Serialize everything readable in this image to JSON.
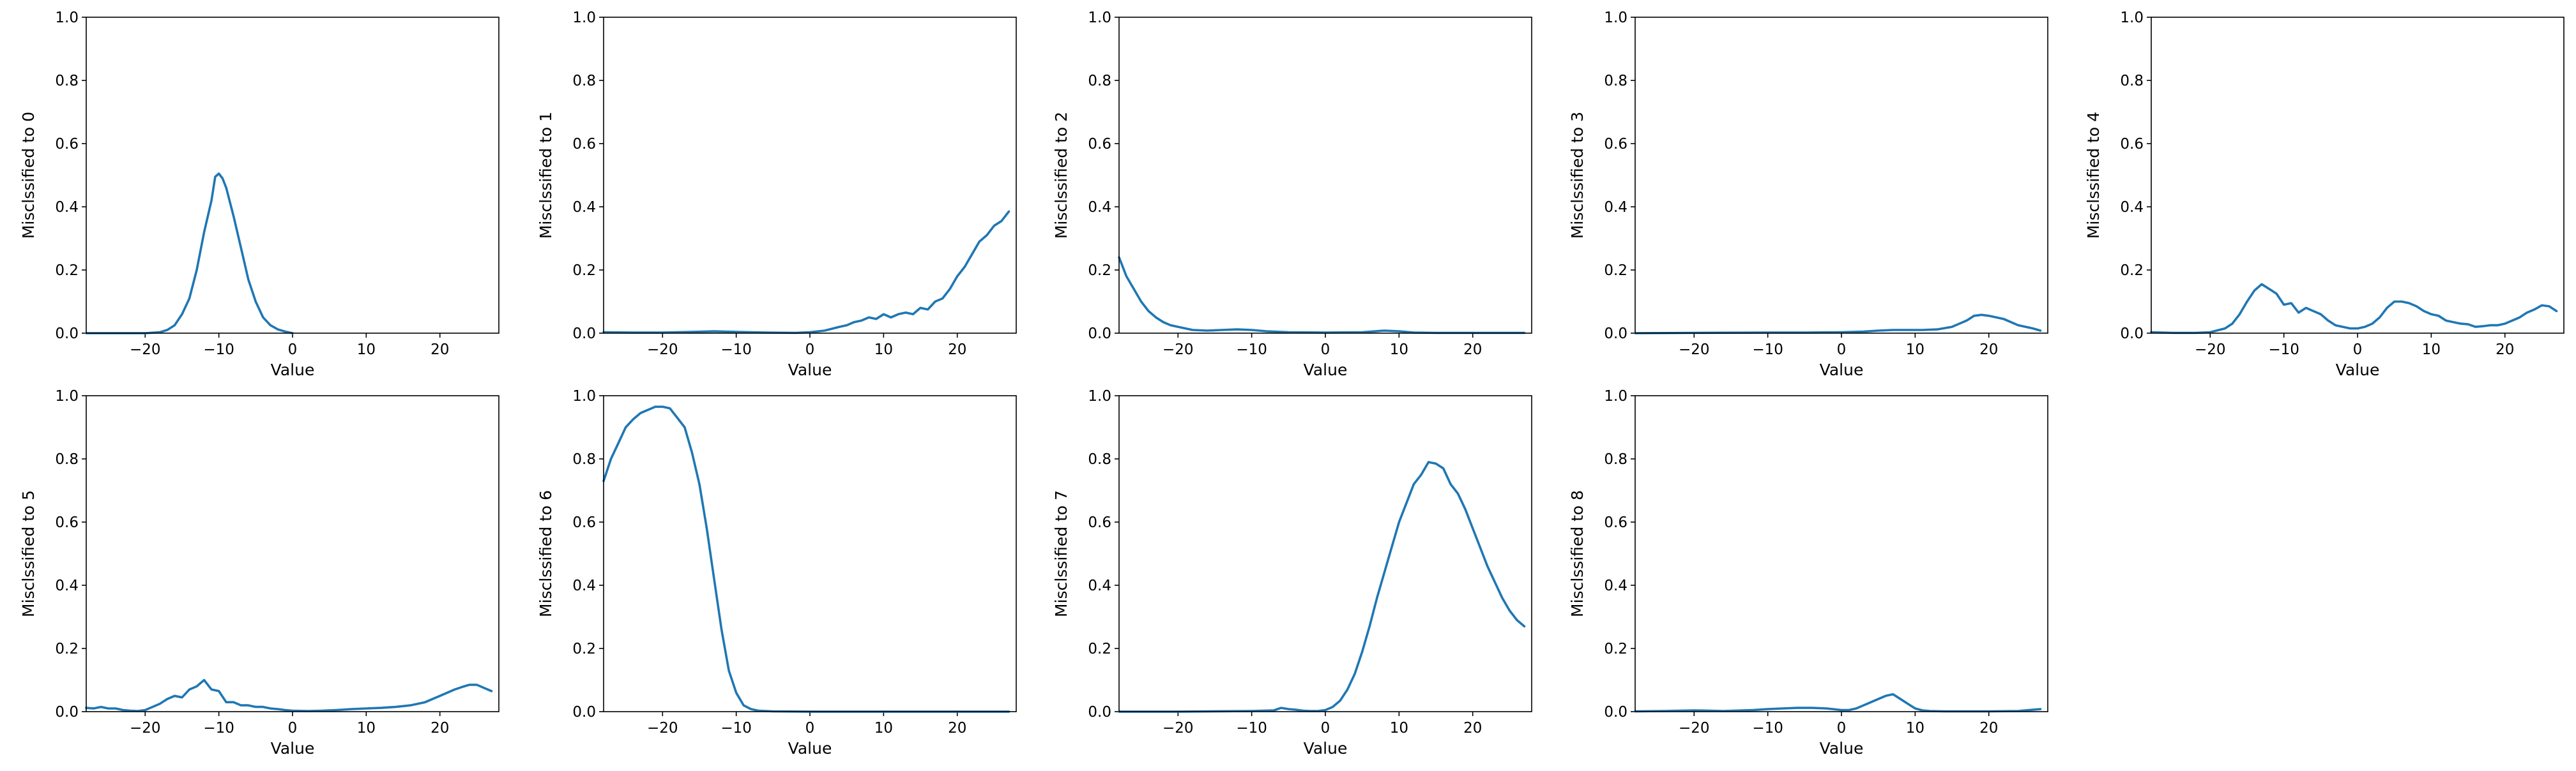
{
  "chart_data": [
    {
      "type": "line",
      "title": "",
      "xlabel": "Value",
      "ylabel": "Misclssified to 0",
      "xlim": [
        -28,
        28
      ],
      "ylim": [
        0,
        1
      ],
      "xticks": [
        -20,
        -10,
        0,
        10,
        20
      ],
      "yticks": [
        0.0,
        0.2,
        0.4,
        0.6,
        0.8,
        1.0
      ],
      "grid": false,
      "color": "#1f77b4",
      "x": [
        -28,
        -26,
        -24,
        -22,
        -20,
        -18,
        -17,
        -16,
        -15,
        -14,
        -13,
        -12,
        -11,
        -10.5,
        -10,
        -9.5,
        -9,
        -8,
        -7,
        -6,
        -5,
        -4,
        -3,
        -2,
        -1,
        0
      ],
      "y": [
        0,
        0,
        0,
        0,
        0,
        0.003,
        0.01,
        0.025,
        0.06,
        0.11,
        0.2,
        0.32,
        0.42,
        0.495,
        0.505,
        0.49,
        0.46,
        0.37,
        0.27,
        0.17,
        0.1,
        0.05,
        0.025,
        0.012,
        0.005,
        0
      ]
    },
    {
      "type": "line",
      "title": "",
      "xlabel": "Value",
      "ylabel": "Misclssified to 1",
      "xlim": [
        -28,
        28
      ],
      "ylim": [
        0,
        1
      ],
      "xticks": [
        -20,
        -10,
        0,
        10,
        20
      ],
      "yticks": [
        0.0,
        0.2,
        0.4,
        0.6,
        0.8,
        1.0
      ],
      "grid": false,
      "color": "#1f77b4",
      "x": [
        -28,
        -24,
        -20,
        -16,
        -13,
        -10,
        -6,
        -2,
        0,
        2,
        4,
        5,
        6,
        7,
        8,
        9,
        10,
        11,
        12,
        13,
        14,
        15,
        16,
        17,
        18,
        19,
        20,
        21,
        22,
        23,
        24,
        25,
        26,
        27
      ],
      "y": [
        0.003,
        0.002,
        0.002,
        0.004,
        0.006,
        0.004,
        0.002,
        0.001,
        0.003,
        0.008,
        0.02,
        0.025,
        0.035,
        0.04,
        0.05,
        0.045,
        0.06,
        0.05,
        0.06,
        0.065,
        0.06,
        0.08,
        0.075,
        0.1,
        0.11,
        0.14,
        0.18,
        0.21,
        0.25,
        0.29,
        0.31,
        0.34,
        0.355,
        0.385
      ]
    },
    {
      "type": "line",
      "title": "",
      "xlabel": "Value",
      "ylabel": "Misclssified to 2",
      "xlim": [
        -28,
        28
      ],
      "ylim": [
        0,
        1
      ],
      "xticks": [
        -20,
        -10,
        0,
        10,
        20
      ],
      "yticks": [
        0.0,
        0.2,
        0.4,
        0.6,
        0.8,
        1.0
      ],
      "grid": false,
      "color": "#1f77b4",
      "x": [
        -28,
        -27,
        -26,
        -25,
        -24,
        -23,
        -22,
        -21,
        -20,
        -18,
        -16,
        -14,
        -12,
        -10,
        -8,
        -5,
        0,
        5,
        8,
        10,
        12,
        15,
        20,
        25,
        27
      ],
      "y": [
        0.24,
        0.18,
        0.14,
        0.1,
        0.07,
        0.05,
        0.035,
        0.025,
        0.02,
        0.01,
        0.008,
        0.01,
        0.012,
        0.01,
        0.006,
        0.003,
        0.002,
        0.003,
        0.008,
        0.006,
        0.002,
        0.001,
        0.001,
        0.001,
        0.001
      ]
    },
    {
      "type": "line",
      "title": "",
      "xlabel": "Value",
      "ylabel": "Misclssified to 3",
      "xlim": [
        -28,
        28
      ],
      "ylim": [
        0,
        1
      ],
      "xticks": [
        -20,
        -10,
        0,
        10,
        20
      ],
      "yticks": [
        0.0,
        0.2,
        0.4,
        0.6,
        0.8,
        1.0
      ],
      "grid": false,
      "color": "#1f77b4",
      "x": [
        -28,
        -20,
        -10,
        -5,
        0,
        3,
        5,
        7,
        9,
        11,
        13,
        15,
        16,
        17,
        18,
        19,
        20,
        21,
        22,
        23,
        24,
        25,
        26,
        27
      ],
      "y": [
        0,
        0.001,
        0.002,
        0.002,
        0.003,
        0.005,
        0.008,
        0.01,
        0.01,
        0.01,
        0.012,
        0.02,
        0.03,
        0.04,
        0.055,
        0.058,
        0.055,
        0.05,
        0.045,
        0.035,
        0.025,
        0.02,
        0.015,
        0.008
      ]
    },
    {
      "type": "line",
      "title": "",
      "xlabel": "Value",
      "ylabel": "Misclssified to 4",
      "xlim": [
        -28,
        28
      ],
      "ylim": [
        0,
        1
      ],
      "xticks": [
        -20,
        -10,
        0,
        10,
        20
      ],
      "yticks": [
        0.0,
        0.2,
        0.4,
        0.6,
        0.8,
        1.0
      ],
      "grid": false,
      "color": "#1f77b4",
      "x": [
        -28,
        -25,
        -22,
        -20,
        -18,
        -17,
        -16,
        -15,
        -14,
        -13,
        -12,
        -11,
        -10,
        -9,
        -8,
        -7,
        -6,
        -5,
        -4,
        -3,
        -2,
        -1,
        0,
        1,
        2,
        3,
        4,
        5,
        6,
        7,
        8,
        9,
        10,
        11,
        12,
        13,
        14,
        15,
        16,
        17,
        18,
        19,
        20,
        21,
        22,
        23,
        24,
        25,
        26,
        27
      ],
      "y": [
        0.003,
        0.001,
        0.001,
        0.003,
        0.015,
        0.03,
        0.06,
        0.1,
        0.135,
        0.155,
        0.14,
        0.125,
        0.09,
        0.095,
        0.065,
        0.08,
        0.07,
        0.06,
        0.04,
        0.025,
        0.02,
        0.015,
        0.015,
        0.02,
        0.03,
        0.05,
        0.08,
        0.1,
        0.1,
        0.095,
        0.085,
        0.07,
        0.06,
        0.055,
        0.04,
        0.035,
        0.03,
        0.028,
        0.02,
        0.022,
        0.025,
        0.025,
        0.03,
        0.04,
        0.05,
        0.065,
        0.075,
        0.088,
        0.085,
        0.07
      ]
    },
    {
      "type": "line",
      "title": "",
      "xlabel": "Value",
      "ylabel": "Misclssified to 5",
      "xlim": [
        -28,
        28
      ],
      "ylim": [
        0,
        1
      ],
      "xticks": [
        -20,
        -10,
        0,
        10,
        20
      ],
      "yticks": [
        0.0,
        0.2,
        0.4,
        0.6,
        0.8,
        1.0
      ],
      "grid": false,
      "color": "#1f77b4",
      "x": [
        -28,
        -27,
        -26,
        -25,
        -24,
        -23,
        -22,
        -21,
        -20,
        -19,
        -18,
        -17,
        -16,
        -15,
        -14,
        -13,
        -12,
        -11,
        -10,
        -9,
        -8,
        -7,
        -6,
        -5,
        -4,
        -3,
        -2,
        -1,
        0,
        2,
        4,
        6,
        8,
        10,
        12,
        14,
        16,
        18,
        19,
        20,
        21,
        22,
        23,
        24,
        25,
        26,
        27
      ],
      "y": [
        0.012,
        0.01,
        0.015,
        0.01,
        0.01,
        0.005,
        0.003,
        0.002,
        0.005,
        0.015,
        0.025,
        0.04,
        0.05,
        0.045,
        0.07,
        0.08,
        0.1,
        0.07,
        0.065,
        0.03,
        0.03,
        0.02,
        0.02,
        0.015,
        0.015,
        0.01,
        0.008,
        0.005,
        0.003,
        0.002,
        0.003,
        0.005,
        0.008,
        0.01,
        0.012,
        0.015,
        0.02,
        0.03,
        0.04,
        0.05,
        0.06,
        0.07,
        0.078,
        0.085,
        0.085,
        0.075,
        0.065
      ]
    },
    {
      "type": "line",
      "title": "",
      "xlabel": "Value",
      "ylabel": "Misclssified to 6",
      "xlim": [
        -28,
        28
      ],
      "ylim": [
        0,
        1
      ],
      "xticks": [
        -20,
        -10,
        0,
        10,
        20
      ],
      "yticks": [
        0.0,
        0.2,
        0.4,
        0.6,
        0.8,
        1.0
      ],
      "grid": false,
      "color": "#1f77b4",
      "x": [
        -28,
        -27,
        -26,
        -25,
        -24,
        -23,
        -22,
        -21,
        -20,
        -19,
        -18,
        -17,
        -16,
        -15,
        -14,
        -13,
        -12,
        -11,
        -10,
        -9,
        -8,
        -7,
        -5,
        0,
        10,
        20,
        27
      ],
      "y": [
        0.73,
        0.8,
        0.85,
        0.9,
        0.925,
        0.945,
        0.955,
        0.965,
        0.965,
        0.96,
        0.93,
        0.9,
        0.82,
        0.72,
        0.58,
        0.42,
        0.26,
        0.13,
        0.06,
        0.02,
        0.008,
        0.003,
        0.001,
        0,
        0,
        0,
        0
      ]
    },
    {
      "type": "line",
      "title": "",
      "xlabel": "Value",
      "ylabel": "Misclssified to 7",
      "xlim": [
        -28,
        28
      ],
      "ylim": [
        0,
        1
      ],
      "xticks": [
        -20,
        -10,
        0,
        10,
        20
      ],
      "yticks": [
        0.0,
        0.2,
        0.4,
        0.6,
        0.8,
        1.0
      ],
      "grid": false,
      "color": "#1f77b4",
      "x": [
        -28,
        -20,
        -10,
        -7,
        -6,
        -5,
        -4,
        -3,
        -2,
        -1,
        0,
        1,
        2,
        3,
        4,
        5,
        6,
        7,
        8,
        9,
        10,
        11,
        12,
        13,
        14,
        15,
        16,
        17,
        18,
        19,
        20,
        21,
        22,
        23,
        24,
        25,
        26,
        27
      ],
      "y": [
        0,
        0,
        0.002,
        0.004,
        0.012,
        0.008,
        0.006,
        0.003,
        0.002,
        0.002,
        0.005,
        0.015,
        0.035,
        0.07,
        0.12,
        0.19,
        0.27,
        0.36,
        0.44,
        0.52,
        0.6,
        0.66,
        0.72,
        0.75,
        0.79,
        0.785,
        0.77,
        0.72,
        0.69,
        0.64,
        0.58,
        0.52,
        0.46,
        0.41,
        0.36,
        0.32,
        0.29,
        0.27
      ]
    },
    {
      "type": "line",
      "title": "",
      "xlabel": "Value",
      "ylabel": "Misclssified to 8",
      "xlim": [
        -28,
        28
      ],
      "ylim": [
        0,
        1
      ],
      "xticks": [
        -20,
        -10,
        0,
        10,
        20
      ],
      "yticks": [
        0.0,
        0.2,
        0.4,
        0.6,
        0.8,
        1.0
      ],
      "grid": false,
      "color": "#1f77b4",
      "x": [
        -28,
        -24,
        -20,
        -16,
        -12,
        -10,
        -8,
        -6,
        -4,
        -2,
        0,
        1,
        2,
        3,
        4,
        5,
        6,
        7,
        8,
        9,
        10,
        11,
        12,
        14,
        16,
        20,
        24,
        27
      ],
      "y": [
        0.001,
        0.002,
        0.004,
        0.002,
        0.005,
        0.008,
        0.01,
        0.012,
        0.012,
        0.01,
        0.005,
        0.005,
        0.01,
        0.02,
        0.03,
        0.04,
        0.05,
        0.055,
        0.04,
        0.025,
        0.01,
        0.004,
        0.002,
        0.001,
        0.001,
        0.001,
        0.002,
        0.008
      ]
    }
  ]
}
